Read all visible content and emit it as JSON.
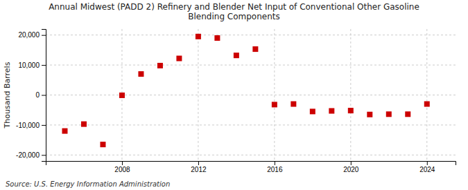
{
  "chart_data": {
    "type": "scatter",
    "title": "Annual Midwest (PADD 2) Refinery and Blender Net Input of Conventional Other Gasoline\nBlending Components",
    "ylabel": "Thousand Barrels",
    "source": "Source: U.S. Energy Information Administration",
    "x": [
      2005,
      2006,
      2007,
      2008,
      2009,
      2010,
      2011,
      2012,
      2013,
      2014,
      2015,
      2016,
      2017,
      2018,
      2019,
      2020,
      2021,
      2022,
      2023,
      2024
    ],
    "values": [
      -12000,
      -9700,
      -16500,
      -100,
      7000,
      9800,
      12200,
      19500,
      19000,
      13200,
      15300,
      -3200,
      -3000,
      -5500,
      -5300,
      -5200,
      -6500,
      -6400,
      -6400,
      -3000
    ],
    "color": "#cc0000",
    "marker": "square",
    "ylim": [
      -22000,
      22000
    ],
    "yticks": [
      {
        "value": -20000,
        "label": "-20,000"
      },
      {
        "value": -10000,
        "label": "-10,000"
      },
      0,
      {
        "value": 10000,
        "label": "10,000"
      },
      {
        "value": 20000,
        "label": "20,000"
      }
    ],
    "xlim": [
      2004,
      2025.5
    ],
    "xticks": [
      2008,
      2012,
      2016,
      2020,
      2024
    ],
    "grid": true
  }
}
